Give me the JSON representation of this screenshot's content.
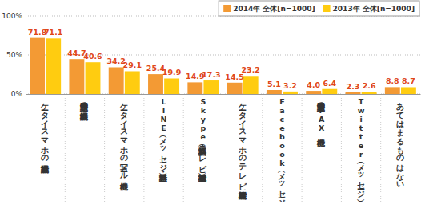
{
  "chart_data": {
    "type": "bar",
    "categories": [
      "ケータイ・スマホの通話機能",
      "固定電話の通話機能",
      "ケータイ・スマホの写メール機能",
      "LINE（メッセージ・無料通話）",
      "Skype（無料通話・テレビ電話機能）",
      "ケータイ・スマホのテレビ電話機能",
      "Facebook（メッセージ）",
      "固定電話のFAX機能",
      "Twitter（メッセージ）",
      "あてはまるものはない"
    ],
    "series": [
      {
        "name": "2014年 全体[n=1000]",
        "color": "#f39a34",
        "values": [
          71.8,
          44.7,
          34.2,
          25.4,
          14.9,
          14.5,
          5.1,
          4.0,
          2.3,
          8.8
        ],
        "value_labels": [
          "71.8",
          "44.7",
          "34.2",
          "25.4",
          "14.9",
          "14.5",
          "5.1",
          "4.0",
          "2.3",
          "8.8"
        ]
      },
      {
        "name": "2013年 全体[n=1000]",
        "color": "#ffcc10",
        "values": [
          71.1,
          40.6,
          29.1,
          19.9,
          17.3,
          23.2,
          3.2,
          6.4,
          2.6,
          8.7
        ],
        "value_labels": [
          "71.1",
          "40.6",
          "29.1",
          "19.9",
          "17.3",
          "23.2",
          "3.2",
          "6.4",
          "2.6",
          "8.7"
        ]
      }
    ],
    "ylim": [
      0,
      100
    ],
    "yticks": [
      {
        "value": 0,
        "label": "0%"
      },
      {
        "value": 50,
        "label": "50%"
      },
      {
        "value": 100,
        "label": "100%"
      }
    ],
    "grid": true,
    "legend": "top-right",
    "data_labels": true
  }
}
